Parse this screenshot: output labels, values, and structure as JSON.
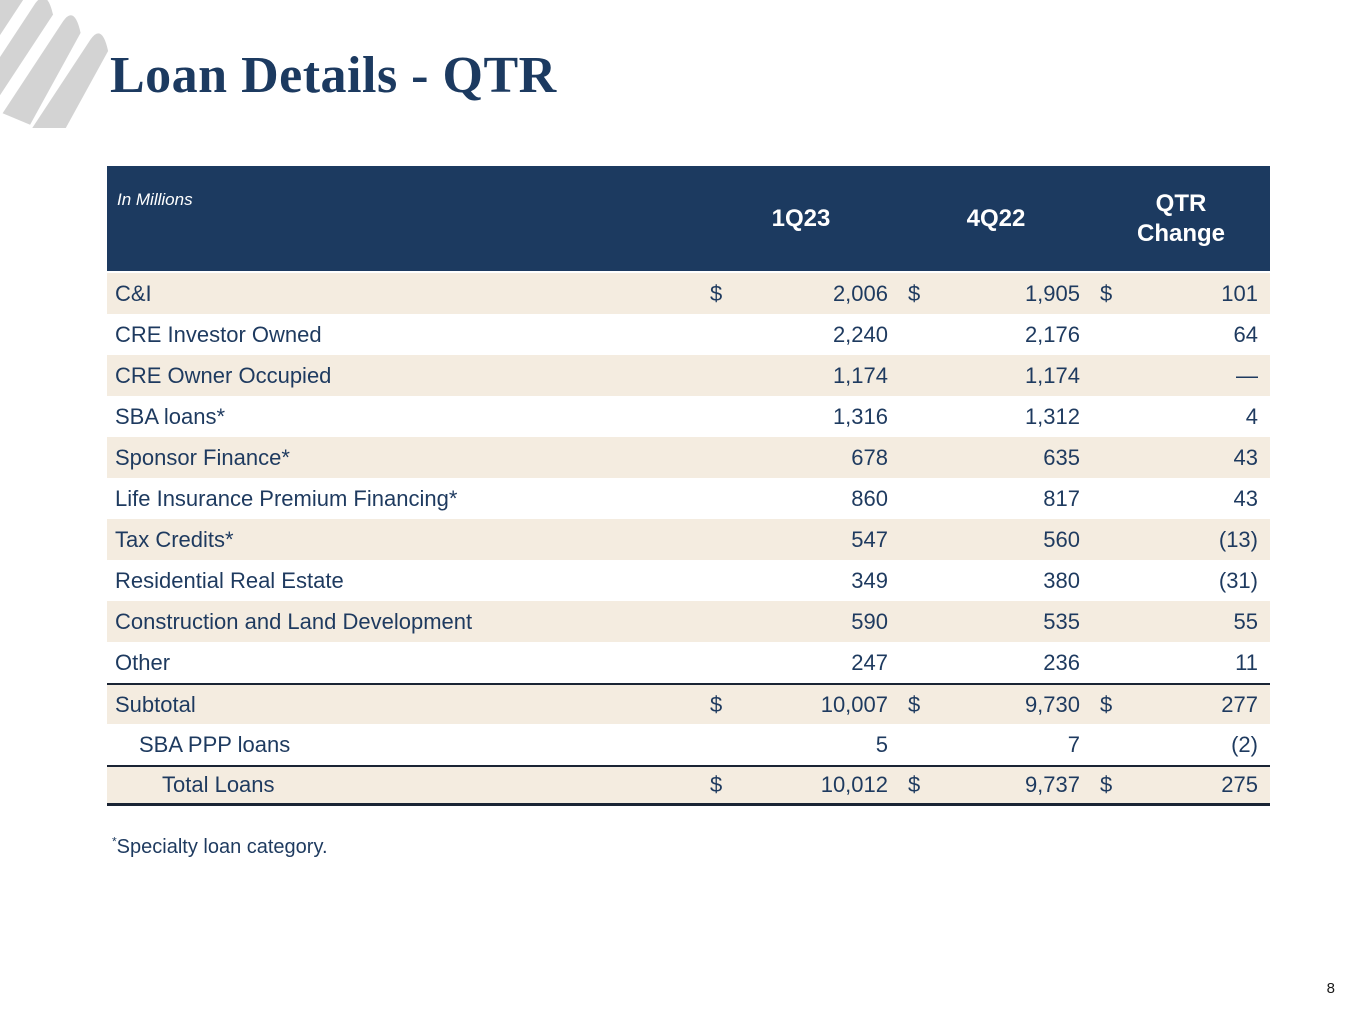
{
  "title": "Loan Details - QTR",
  "page_number": "8",
  "footnote": {
    "marker": "*",
    "text": "Specialty loan category."
  },
  "colors": {
    "navy": "#1c3a60",
    "beige": "#f4ece0",
    "text": "#1e3a5f",
    "line": "#1a2434",
    "logo_gray": "#d3d3d3"
  },
  "table": {
    "unit_note": "In Millions",
    "columns": [
      "1Q23",
      "4Q22",
      "QTR Change"
    ],
    "rows": [
      {
        "label": "C&I",
        "dollar": "$",
        "values": [
          "2,006",
          "1,905",
          "101"
        ],
        "shaded": true,
        "indent": 0
      },
      {
        "label": "CRE Investor Owned",
        "dollar": "",
        "values": [
          "2,240",
          "2,176",
          "64"
        ],
        "shaded": false,
        "indent": 0
      },
      {
        "label": "CRE Owner Occupied",
        "dollar": "",
        "values": [
          "1,174",
          "1,174",
          "—"
        ],
        "shaded": true,
        "indent": 0
      },
      {
        "label": "SBA loans*",
        "dollar": "",
        "values": [
          "1,316",
          "1,312",
          "4"
        ],
        "shaded": false,
        "indent": 0
      },
      {
        "label": "Sponsor Finance*",
        "dollar": "",
        "values": [
          "678",
          "635",
          "43"
        ],
        "shaded": true,
        "indent": 0
      },
      {
        "label": "Life Insurance Premium Financing*",
        "dollar": "",
        "values": [
          "860",
          "817",
          "43"
        ],
        "shaded": false,
        "indent": 0
      },
      {
        "label": "Tax Credits*",
        "dollar": "",
        "values": [
          "547",
          "560",
          "(13)"
        ],
        "shaded": true,
        "indent": 0
      },
      {
        "label": "Residential Real Estate",
        "dollar": "",
        "values": [
          "349",
          "380",
          "(31)"
        ],
        "shaded": false,
        "indent": 0
      },
      {
        "label": "Construction and Land Development",
        "dollar": "",
        "values": [
          "590",
          "535",
          "55"
        ],
        "shaded": true,
        "indent": 0
      },
      {
        "label": "Other",
        "dollar": "",
        "values": [
          "247",
          "236",
          "11"
        ],
        "shaded": false,
        "indent": 0
      },
      {
        "label": "Subtotal",
        "dollar": "$",
        "values": [
          "10,007",
          "9,730",
          "277"
        ],
        "shaded": true,
        "indent": 0,
        "rule_above": true
      },
      {
        "label": "SBA PPP loans",
        "dollar": "",
        "values": [
          "5",
          "7",
          "(2)"
        ],
        "shaded": false,
        "indent": 1
      },
      {
        "label": "Total Loans",
        "dollar": "$",
        "values": [
          "10,012",
          "9,737",
          "275"
        ],
        "shaded": true,
        "indent": 2,
        "rule_above": true,
        "rule_below": true
      }
    ]
  }
}
